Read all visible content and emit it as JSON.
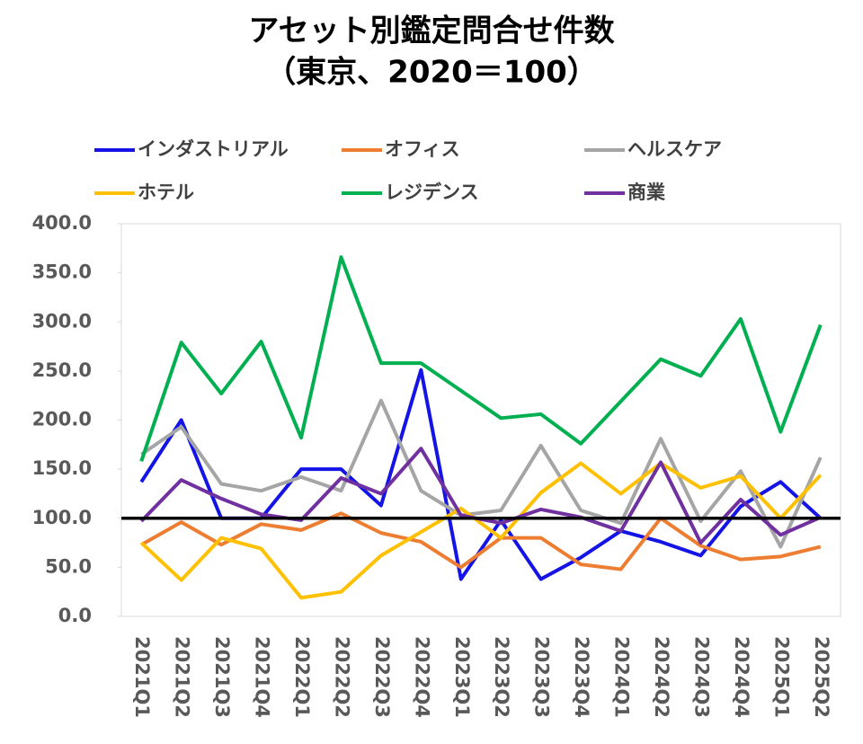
{
  "chart_data": {
    "type": "line",
    "title": "アセット別鑑定問合せ件数",
    "subtitle": "（東京、2020＝100）",
    "categories": [
      "2021Q1",
      "2021Q2",
      "2021Q3",
      "2021Q4",
      "2022Q1",
      "2022Q2",
      "2022Q3",
      "2022Q4",
      "2023Q1",
      "2023Q2",
      "2023Q3",
      "2023Q4",
      "2024Q1",
      "2024Q2",
      "2024Q3",
      "2024Q4",
      "2025Q1",
      "2025Q2"
    ],
    "series": [
      {
        "name": "インダストリアル",
        "color": "#1414e6",
        "values": [
          137,
          200,
          100,
          100,
          150,
          150,
          113,
          251,
          38,
          98,
          38,
          60,
          87,
          76,
          62,
          112,
          137,
          100
        ]
      },
      {
        "name": "オフィス",
        "color": "#ed7d31",
        "values": [
          73,
          96,
          73,
          94,
          88,
          105,
          85,
          76,
          50,
          80,
          80,
          53,
          48,
          100,
          72,
          58,
          61,
          71
        ]
      },
      {
        "name": "ヘルスケア",
        "color": "#a5a5a5",
        "values": [
          165,
          193,
          135,
          128,
          142,
          128,
          220,
          128,
          103,
          108,
          174,
          108,
          95,
          181,
          97,
          148,
          71,
          162
        ]
      },
      {
        "name": "ホテル",
        "color": "#ffc000",
        "values": [
          75,
          37,
          80,
          69,
          19,
          25,
          62,
          86,
          110,
          80,
          126,
          156,
          125,
          156,
          131,
          143,
          100,
          144
        ]
      },
      {
        "name": "レジデンス",
        "color": "#00b050",
        "values": [
          158,
          279,
          227,
          280,
          182,
          366,
          258,
          258,
          230,
          202,
          206,
          176,
          219,
          262,
          245,
          303,
          188,
          297
        ]
      },
      {
        "name": "商業",
        "color": "#7030a0",
        "values": [
          97,
          139,
          120,
          104,
          98,
          141,
          125,
          171,
          103,
          95,
          109,
          101,
          87,
          157,
          75,
          119,
          83,
          101
        ]
      }
    ],
    "reference_line": 100,
    "ylim": [
      0,
      400
    ],
    "yticks": [
      {
        "value": 0,
        "label": "0.0"
      },
      {
        "value": 50,
        "label": "50.0"
      },
      {
        "value": 100,
        "label": "100.0"
      },
      {
        "value": 150,
        "label": "150.0"
      },
      {
        "value": 200,
        "label": "200.0"
      },
      {
        "value": 250,
        "label": "250.0"
      },
      {
        "value": 300,
        "label": "300.0"
      },
      {
        "value": 350,
        "label": "350.0"
      },
      {
        "value": 400,
        "label": "400.0"
      }
    ]
  }
}
